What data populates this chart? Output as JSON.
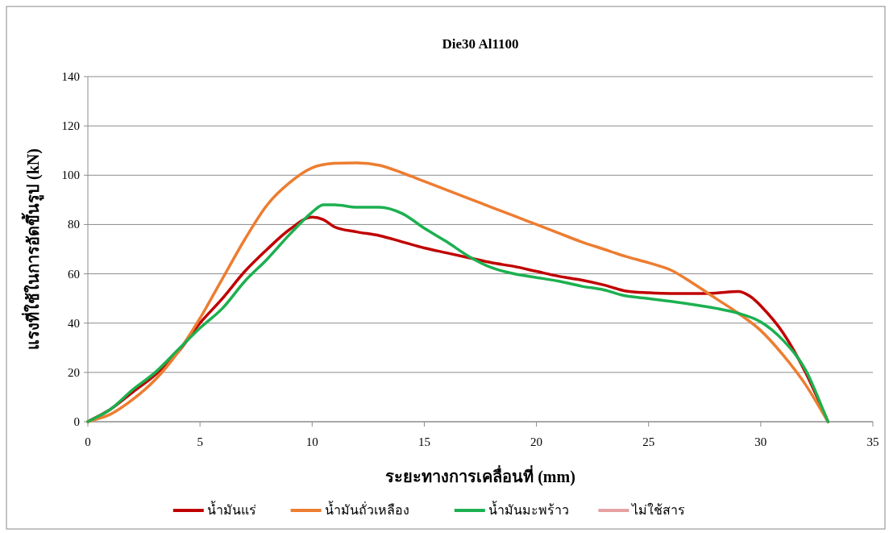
{
  "chart_data": {
    "type": "line",
    "title": "Die30 Al1100",
    "xlabel": "ระยะทางการเคลื่อนที่ (mm)",
    "ylabel": "แรงที่ใช้ในการอัดขึ้นรูป (kN)",
    "xlim": [
      0,
      35
    ],
    "xticks": [
      0,
      5,
      10,
      15,
      20,
      25,
      30,
      35
    ],
    "ylim": [
      0,
      140
    ],
    "yticks": [
      0,
      20,
      40,
      60,
      80,
      100,
      120,
      140
    ],
    "grid": "y",
    "legend": "bottom",
    "marker": "none",
    "line_style": "solid",
    "series": [
      {
        "name": "น้ำมันแร่",
        "color": "#c00000",
        "x": [
          0,
          1,
          2,
          3,
          4,
          5,
          6,
          7,
          8,
          9,
          10,
          10.5,
          11,
          12,
          13,
          14,
          15,
          16,
          17,
          18,
          19,
          20,
          21,
          22,
          23,
          24,
          25,
          26,
          27,
          28,
          29,
          29.5,
          30,
          31,
          32,
          33
        ],
        "values": [
          0,
          5,
          12,
          19,
          28,
          40,
          50,
          61,
          70,
          78,
          83,
          82,
          79,
          77,
          75.5,
          73,
          70.5,
          68.5,
          66.5,
          64.5,
          63,
          61,
          59,
          57.5,
          55.5,
          53,
          52.3,
          52,
          52,
          52.2,
          52.8,
          51,
          47,
          36,
          20,
          0
        ]
      },
      {
        "name": "น้ำมันถั่วเหลือง",
        "color": "#ed7d31",
        "x": [
          0,
          1,
          2,
          3,
          4,
          5,
          6,
          7,
          8,
          9,
          10,
          11,
          12,
          13,
          14,
          15,
          16,
          17,
          18,
          19,
          20,
          21,
          22,
          23,
          24,
          25,
          26,
          27,
          28,
          29,
          30,
          31,
          32,
          33
        ],
        "values": [
          0,
          3,
          9,
          17,
          28,
          42,
          58,
          74,
          88,
          97,
          103,
          104.8,
          105,
          104,
          101,
          97.5,
          94,
          90.5,
          87,
          83.5,
          80,
          76.5,
          73,
          70,
          67,
          64.5,
          61.5,
          56,
          50,
          44,
          37,
          27,
          15,
          0
        ]
      },
      {
        "name": "น้ำมันมะพร้าว",
        "color": "#1cb050",
        "x": [
          0,
          1,
          2,
          3,
          4,
          5,
          6,
          7,
          8,
          9,
          10,
          10.5,
          11,
          12,
          13,
          14,
          15,
          16,
          17,
          18,
          19,
          20,
          21,
          22,
          23,
          24,
          25,
          26,
          27,
          28,
          29,
          30,
          31,
          32,
          33
        ],
        "values": [
          0,
          5,
          13,
          20,
          29,
          38,
          46,
          57,
          66,
          76,
          85,
          88,
          88,
          87,
          87,
          84.5,
          78.5,
          73,
          67,
          62.5,
          60,
          58.5,
          57,
          55,
          53.5,
          51,
          50,
          48.8,
          47.5,
          46,
          44,
          40.5,
          33,
          21,
          0
        ]
      },
      {
        "name": "ไม่ใช้สาร",
        "color": "#e6a0a0"
      }
    ]
  }
}
